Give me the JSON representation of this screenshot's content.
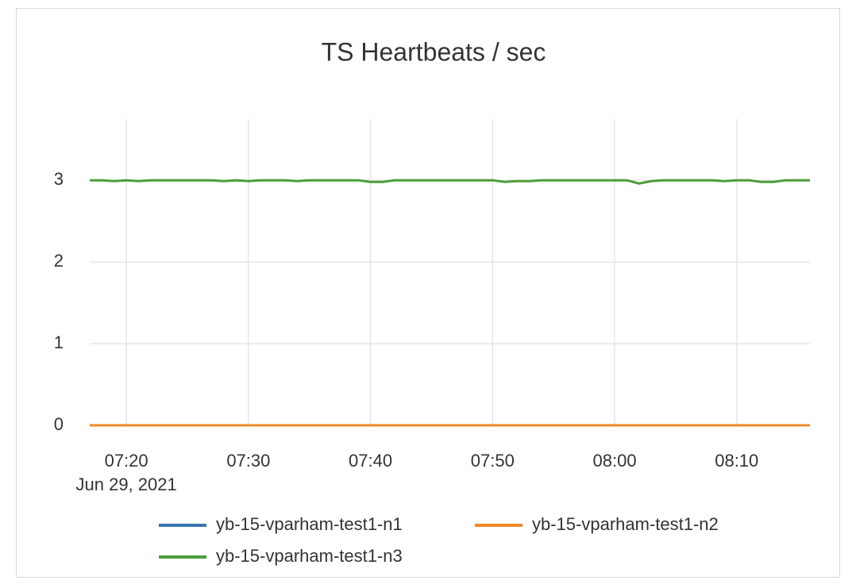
{
  "chart_data": {
    "type": "line",
    "title": "TS Heartbeats / sec",
    "x": [
      "2021-06-29 07:17",
      "2021-06-29 07:18",
      "2021-06-29 07:19",
      "2021-06-29 07:20",
      "2021-06-29 07:21",
      "2021-06-29 07:22",
      "2021-06-29 07:23",
      "2021-06-29 07:24",
      "2021-06-29 07:25",
      "2021-06-29 07:26",
      "2021-06-29 07:27",
      "2021-06-29 07:28",
      "2021-06-29 07:29",
      "2021-06-29 07:30",
      "2021-06-29 07:31",
      "2021-06-29 07:32",
      "2021-06-29 07:33",
      "2021-06-29 07:34",
      "2021-06-29 07:35",
      "2021-06-29 07:36",
      "2021-06-29 07:37",
      "2021-06-29 07:38",
      "2021-06-29 07:39",
      "2021-06-29 07:40",
      "2021-06-29 07:41",
      "2021-06-29 07:42",
      "2021-06-29 07:43",
      "2021-06-29 07:44",
      "2021-06-29 07:45",
      "2021-06-29 07:46",
      "2021-06-29 07:47",
      "2021-06-29 07:48",
      "2021-06-29 07:49",
      "2021-06-29 07:50",
      "2021-06-29 07:51",
      "2021-06-29 07:52",
      "2021-06-29 07:53",
      "2021-06-29 07:54",
      "2021-06-29 07:55",
      "2021-06-29 07:56",
      "2021-06-29 07:57",
      "2021-06-29 07:58",
      "2021-06-29 07:59",
      "2021-06-29 08:00",
      "2021-06-29 08:01",
      "2021-06-29 08:02",
      "2021-06-29 08:03",
      "2021-06-29 08:04",
      "2021-06-29 08:05",
      "2021-06-29 08:06",
      "2021-06-29 08:07",
      "2021-06-29 08:08",
      "2021-06-29 08:09",
      "2021-06-29 08:10",
      "2021-06-29 08:11",
      "2021-06-29 08:12",
      "2021-06-29 08:13",
      "2021-06-29 08:14",
      "2021-06-29 08:15",
      "2021-06-29 08:16"
    ],
    "series": [
      {
        "name": "yb-15-vparham-test1-n1",
        "color": "#3a77b0",
        "values": [
          0,
          0,
          0,
          0,
          0,
          0,
          0,
          0,
          0,
          0,
          0,
          0,
          0,
          0,
          0,
          0,
          0,
          0,
          0,
          0,
          0,
          0,
          0,
          0,
          0,
          0,
          0,
          0,
          0,
          0,
          0,
          0,
          0,
          0,
          0,
          0,
          0,
          0,
          0,
          0,
          0,
          0,
          0,
          0,
          0,
          0,
          0,
          0,
          0,
          0,
          0,
          0,
          0,
          0,
          0,
          0,
          0,
          0,
          0,
          0
        ]
      },
      {
        "name": "yb-15-vparham-test1-n2",
        "color": "#f08a2c",
        "values": [
          0,
          0,
          0,
          0,
          0,
          0,
          0,
          0,
          0,
          0,
          0,
          0,
          0,
          0,
          0,
          0,
          0,
          0,
          0,
          0,
          0,
          0,
          0,
          0,
          0,
          0,
          0,
          0,
          0,
          0,
          0,
          0,
          0,
          0,
          0,
          0,
          0,
          0,
          0,
          0,
          0,
          0,
          0,
          0,
          0,
          0,
          0,
          0,
          0,
          0,
          0,
          0,
          0,
          0,
          0,
          0,
          0,
          0,
          0,
          0
        ]
      },
      {
        "name": "yb-15-vparham-test1-n3",
        "color": "#4b9e3a",
        "values": [
          3,
          3,
          2.99,
          3,
          2.99,
          3,
          3,
          3,
          3,
          3,
          3,
          2.99,
          3,
          2.99,
          3,
          3,
          3,
          2.99,
          3,
          3,
          3,
          3,
          3,
          2.98,
          2.98,
          3,
          3,
          3,
          3,
          3,
          3,
          3,
          3,
          3,
          2.98,
          2.99,
          2.99,
          3,
          3,
          3,
          3,
          3,
          3,
          3,
          3,
          2.96,
          2.99,
          3,
          3,
          3,
          3,
          3,
          2.99,
          3,
          3,
          2.98,
          2.98,
          3,
          3,
          3
        ]
      }
    ],
    "xlim": [
      "2021-06-29 07:17",
      "2021-06-29 08:16"
    ],
    "xticks": [
      {
        "value": "2021-06-29 07:20",
        "label": "07:20"
      },
      {
        "value": "2021-06-29 07:30",
        "label": "07:30"
      },
      {
        "value": "2021-06-29 07:40",
        "label": "07:40"
      },
      {
        "value": "2021-06-29 07:50",
        "label": "07:50"
      },
      {
        "value": "2021-06-29 08:00",
        "label": "08:00"
      },
      {
        "value": "2021-06-29 08:10",
        "label": "08:10"
      }
    ],
    "x_date_label": "Jun 29, 2021",
    "ylim": [
      0,
      3.75
    ],
    "yticks": [
      0,
      1,
      2,
      3
    ],
    "grid": true,
    "legend": "bottom"
  }
}
